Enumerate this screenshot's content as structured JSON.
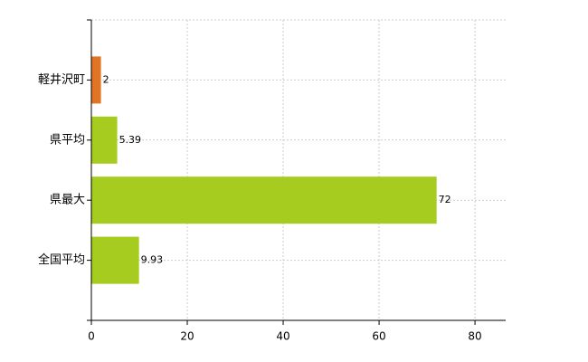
{
  "chart_data": {
    "type": "bar",
    "orientation": "horizontal",
    "categories": [
      "軽井沢町",
      "県平均",
      "県最大",
      "全国平均"
    ],
    "values": [
      2,
      5.39,
      72,
      9.93
    ],
    "colors": [
      "#e07424",
      "#a5cc1e",
      "#a5cc1e",
      "#a5cc1e"
    ],
    "xlim": [
      0,
      86.4
    ],
    "xticks": [
      0,
      20,
      40,
      60,
      80
    ],
    "grid": true
  }
}
